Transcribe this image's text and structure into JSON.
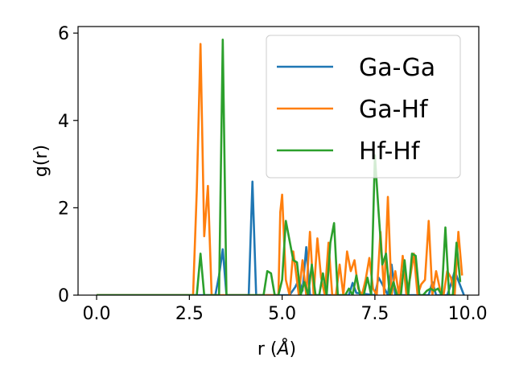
{
  "chart_data": {
    "type": "line",
    "xlabel": "r (",
    "xlabel_unit": "Å",
    "xlabel_close": ")",
    "ylabel": "g(r)",
    "xlim": [
      -0.5,
      10.3
    ],
    "ylim": [
      0,
      6.15
    ],
    "xticks": [
      0.0,
      2.5,
      5.0,
      7.5,
      10.0
    ],
    "xtick_labels": [
      "0.0",
      "2.5",
      "5.0",
      "7.5",
      "10.0"
    ],
    "yticks": [
      0,
      2,
      4,
      6
    ],
    "ytick_labels": [
      "0",
      "2",
      "4",
      "6"
    ],
    "grid": false,
    "legend_position": "upper-right",
    "series": [
      {
        "name": "Ga-Ga",
        "color": "#1f77b4",
        "x": [
          0.0,
          2.0,
          3.2,
          3.3,
          3.4,
          3.5,
          4.1,
          4.2,
          4.3,
          5.2,
          5.35,
          5.45,
          5.55,
          5.65,
          5.75,
          6.8,
          6.9,
          7.0,
          7.5,
          7.6,
          7.7,
          7.85,
          7.95,
          8.05,
          8.95,
          9.05,
          9.15,
          9.45,
          9.55,
          9.65,
          9.9
        ],
        "y": [
          0.0,
          0.0,
          0.0,
          0.45,
          1.05,
          0.0,
          0.0,
          2.6,
          0.0,
          0.0,
          0.18,
          0.35,
          0.1,
          1.1,
          0.0,
          0.0,
          0.28,
          0.05,
          0.0,
          0.4,
          0.25,
          0.0,
          0.7,
          0.0,
          0.0,
          0.3,
          0.0,
          0.0,
          0.25,
          0.55,
          0.0
        ]
      },
      {
        "name": "Ga-Hf",
        "color": "#ff7f0e",
        "x": [
          0.0,
          2.6,
          2.7,
          2.8,
          2.9,
          3.0,
          3.1,
          4.9,
          4.95,
          5.0,
          5.1,
          5.2,
          5.3,
          5.45,
          5.55,
          5.65,
          5.75,
          5.85,
          5.95,
          6.05,
          6.15,
          6.25,
          6.35,
          6.45,
          6.55,
          6.65,
          6.75,
          6.85,
          6.95,
          7.05,
          7.15,
          7.25,
          7.35,
          7.45,
          7.55,
          7.65,
          7.75,
          7.85,
          7.95,
          8.05,
          8.15,
          8.25,
          8.35,
          8.45,
          8.55,
          8.65,
          8.75,
          8.85,
          8.95,
          9.05,
          9.15,
          9.25,
          9.35,
          9.45,
          9.55,
          9.65,
          9.75,
          9.85
        ],
        "y": [
          0.0,
          0.0,
          2.4,
          5.75,
          1.35,
          2.5,
          0.0,
          0.0,
          1.9,
          2.3,
          0.35,
          0.0,
          1.0,
          0.0,
          0.8,
          0.0,
          1.45,
          0.0,
          1.3,
          0.4,
          0.0,
          1.2,
          0.0,
          0.0,
          0.7,
          0.0,
          1.0,
          0.55,
          0.8,
          0.15,
          0.0,
          0.35,
          0.85,
          0.15,
          0.0,
          1.45,
          0.0,
          2.25,
          0.0,
          0.55,
          0.0,
          0.9,
          0.0,
          0.4,
          0.95,
          0.0,
          0.25,
          0.35,
          1.7,
          0.0,
          0.55,
          0.15,
          0.0,
          0.55,
          0.4,
          0.0,
          1.45,
          0.45
        ]
      },
      {
        "name": "Hf-Hf",
        "color": "#2ca02c",
        "x": [
          0.0,
          2.6,
          2.7,
          2.8,
          2.9,
          3.2,
          3.3,
          3.4,
          3.5,
          4.3,
          4.5,
          4.6,
          4.7,
          4.8,
          4.9,
          5.0,
          5.1,
          5.2,
          5.3,
          5.4,
          5.5,
          5.6,
          5.7,
          5.8,
          5.9,
          6.0,
          6.1,
          6.2,
          6.3,
          6.4,
          6.5,
          6.6,
          6.7,
          6.8,
          6.9,
          7.0,
          7.1,
          7.2,
          7.3,
          7.4,
          7.5,
          7.6,
          7.7,
          7.8,
          7.9,
          8.0,
          8.1,
          8.2,
          8.3,
          8.4,
          8.5,
          8.6,
          8.7,
          8.8,
          8.9,
          9.0,
          9.1,
          9.2,
          9.3,
          9.4,
          9.5,
          9.6,
          9.7,
          9.8
        ],
        "y": [
          0.0,
          0.0,
          0.0,
          0.95,
          0.0,
          0.0,
          0.0,
          5.85,
          0.0,
          0.0,
          0.0,
          0.55,
          0.5,
          0.0,
          0.0,
          0.35,
          1.7,
          1.25,
          0.8,
          0.75,
          0.0,
          0.3,
          0.0,
          0.7,
          0.0,
          0.0,
          0.5,
          0.0,
          1.2,
          1.65,
          0.0,
          0.0,
          0.0,
          0.15,
          0.0,
          0.45,
          0.0,
          0.0,
          0.4,
          0.0,
          3.2,
          1.9,
          0.7,
          0.95,
          0.0,
          0.3,
          0.0,
          0.0,
          0.8,
          0.0,
          0.95,
          0.9,
          0.0,
          0.0,
          0.1,
          0.15,
          0.1,
          0.15,
          0.0,
          1.55,
          0.0,
          0.0,
          1.2,
          0.3
        ]
      }
    ]
  }
}
